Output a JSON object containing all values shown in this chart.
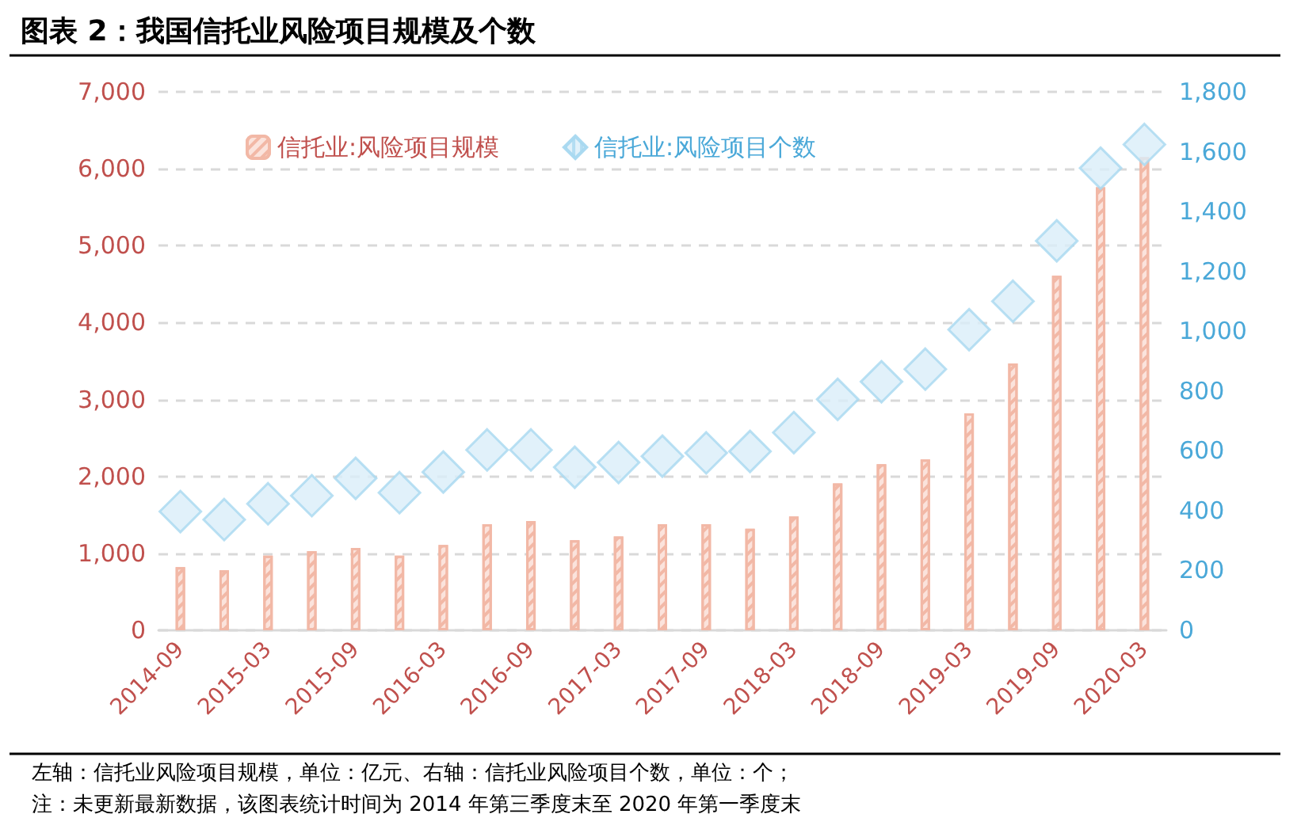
{
  "chart_data": {
    "type": "bar",
    "title": "图表 2：我国信托业风险项目规模及个数",
    "categories": [
      "2014-09",
      null,
      "2015-03",
      null,
      "2015-09",
      null,
      "2016-03",
      null,
      "2016-09",
      null,
      "2017-03",
      null,
      "2017-09",
      null,
      "2018-03",
      null,
      "2018-09",
      null,
      "2019-03",
      null,
      "2019-09",
      null,
      "2020-03"
    ],
    "series": [
      {
        "name": "信托业:风险项目规模",
        "color": "#f2b8a6",
        "values": [
          820,
          780,
          970,
          1030,
          1070,
          970,
          1110,
          1380,
          1420,
          1170,
          1220,
          1380,
          1380,
          1320,
          1480,
          1910,
          2160,
          2220,
          2820,
          3470,
          4610,
          5760,
          6150
        ]
      },
      {
        "name": "信托业:风险项目个数",
        "type": "scatter",
        "axis": "y2",
        "color": "#a8d8f0",
        "values": [
          397,
          370,
          423,
          450,
          508,
          460,
          529,
          603,
          603,
          545,
          561,
          582,
          593,
          598,
          661,
          772,
          831,
          873,
          1005,
          1100,
          1302,
          1545,
          1624
        ]
      }
    ],
    "ylim": [
      0,
      7000
    ],
    "yticks": [
      0,
      {
        "value": 1000,
        "label": "1,000"
      },
      {
        "value": 2000,
        "label": "2,000"
      },
      {
        "value": 3000,
        "label": "3,000"
      },
      {
        "value": 4000,
        "label": "4,000"
      },
      {
        "value": 5000,
        "label": "5,000"
      },
      {
        "value": 6000,
        "label": "6,000"
      },
      {
        "value": 7000,
        "label": "7,000"
      }
    ],
    "y2lim": [
      0,
      1800
    ],
    "y2ticks": [
      0,
      200,
      400,
      600,
      800,
      {
        "value": 1000,
        "label": "1,000"
      },
      {
        "value": 1200,
        "label": "1,200"
      },
      {
        "value": 1400,
        "label": "1,400"
      },
      {
        "value": 1600,
        "label": "1,600"
      },
      {
        "value": 1800,
        "label": "1,800"
      }
    ],
    "grid": "y",
    "legend": "top left",
    "marker": "diamond",
    "annotations": [
      "左轴：信托业风险项目规模，单位：亿元、右轴：信托业风险项目个数，单位：个；",
      "注：未更新最新数据，该图表统计时间为 2014 年第三季度末至 2020 年第一季度末"
    ]
  }
}
